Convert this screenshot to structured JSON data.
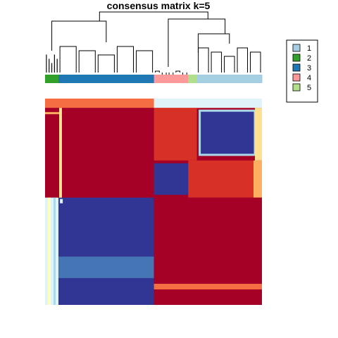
{
  "title": "consensus matrix k=5",
  "chart_data": {
    "type": "heatmap",
    "title": "consensus matrix k=5",
    "k": 5,
    "color_scale": {
      "low": "#2F3E9A",
      "mid": "#FFFFBF",
      "high": "#A50026",
      "range": [
        0,
        1
      ]
    },
    "clusters": [
      {
        "label": "1",
        "color": "#A6CEE3"
      },
      {
        "label": "2",
        "color": "#33A02C"
      },
      {
        "label": "3",
        "color": "#1F78B4"
      },
      {
        "label": "4",
        "color": "#FB9A99"
      },
      {
        "label": "5",
        "color": "#B2DF8A"
      }
    ],
    "annotation_order": [
      {
        "cluster": "2",
        "fraction": 0.062
      },
      {
        "cluster": "3",
        "fraction": 0.44
      },
      {
        "cluster": "4",
        "fraction": 0.158
      },
      {
        "cluster": "5",
        "fraction": 0.04
      },
      {
        "cluster": "1",
        "fraction": 0.3
      }
    ],
    "row_blocks": [
      {
        "fraction": 0.045,
        "note": "mixed"
      },
      {
        "fraction": 0.255,
        "note": "high consensus left, cluster-1 block low"
      },
      {
        "fraction": 0.18,
        "note": "cluster-4 block low"
      },
      {
        "fraction": 0.52,
        "note": "cluster-3 block low"
      }
    ],
    "legend": {
      "position": "right",
      "entries": [
        "1",
        "2",
        "3",
        "4",
        "5"
      ]
    }
  }
}
